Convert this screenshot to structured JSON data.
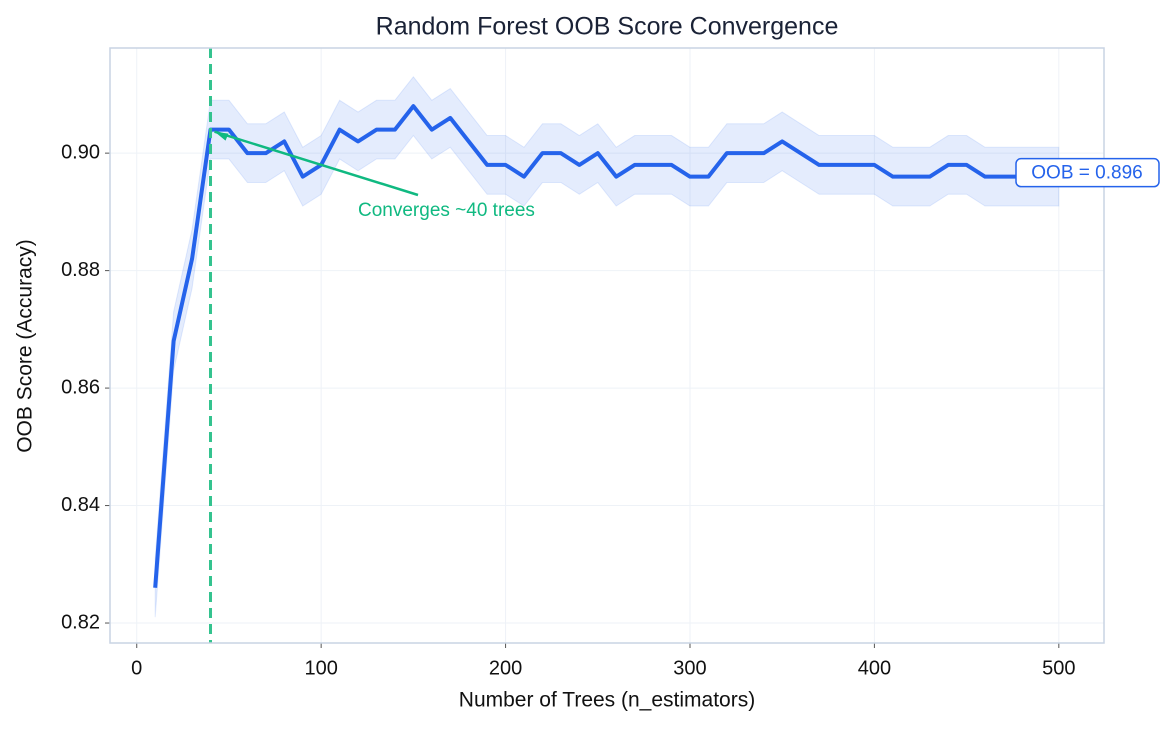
{
  "chart_data": {
    "type": "line",
    "title": "Random Forest OOB Score Convergence",
    "xlabel": "Number of Trees (n_estimators)",
    "ylabel": "OOB Score (Accuracy)",
    "x": [
      10,
      20,
      30,
      40,
      50,
      60,
      70,
      80,
      90,
      100,
      110,
      120,
      130,
      140,
      150,
      160,
      170,
      180,
      190,
      200,
      210,
      220,
      230,
      240,
      250,
      260,
      270,
      280,
      290,
      300,
      310,
      320,
      330,
      340,
      350,
      360,
      370,
      380,
      390,
      400,
      410,
      420,
      430,
      440,
      450,
      460,
      470,
      480,
      490,
      500
    ],
    "values": [
      0.826,
      0.868,
      0.882,
      0.904,
      0.904,
      0.9,
      0.9,
      0.902,
      0.896,
      0.898,
      0.904,
      0.902,
      0.904,
      0.904,
      0.908,
      0.904,
      0.906,
      0.902,
      0.898,
      0.898,
      0.896,
      0.9,
      0.9,
      0.898,
      0.9,
      0.896,
      0.898,
      0.898,
      0.898,
      0.896,
      0.896,
      0.9,
      0.9,
      0.9,
      0.902,
      0.9,
      0.898,
      0.898,
      0.898,
      0.898,
      0.896,
      0.896,
      0.896,
      0.898,
      0.898,
      0.896,
      0.896,
      0.896,
      0.896,
      0.896
    ],
    "band": 0.005,
    "color": "#2563eb",
    "vline": 40,
    "vline_color": "#34c38f",
    "annotations": [
      {
        "text": "Converges ~40 trees",
        "color": "#10b981"
      },
      {
        "text": "OOB = 0.896",
        "color": "#2563eb"
      }
    ],
    "xlim": [
      -14.5,
      524.5
    ],
    "xticks": [
      0,
      100,
      200,
      300,
      400,
      500
    ],
    "ylim": [
      0.8166,
      0.9179
    ],
    "yticks": [
      0.82,
      0.84,
      0.86,
      0.88,
      {
        "value": 0.9,
        "label": "0.90"
      }
    ],
    "grid": true
  }
}
